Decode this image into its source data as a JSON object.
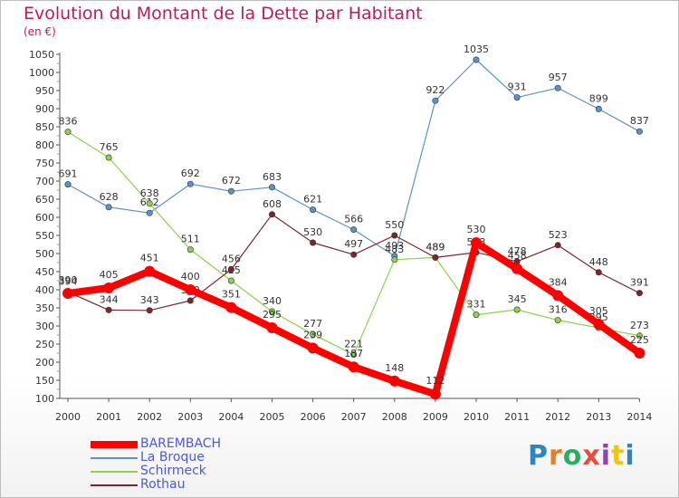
{
  "title": "Evolution du Montant de la Dette par Habitant",
  "subtitle": "(en €)",
  "logo": {
    "text": "Proxiti"
  },
  "chart_data": {
    "type": "line",
    "x": [
      "2000",
      "2001",
      "2002",
      "2003",
      "2004",
      "2005",
      "2006",
      "2007",
      "2008",
      "2009",
      "2010",
      "2011",
      "2012",
      "2013",
      "2014"
    ],
    "ylim": [
      100,
      1050
    ],
    "yticks": [
      100,
      150,
      200,
      250,
      300,
      350,
      400,
      450,
      500,
      550,
      600,
      650,
      700,
      750,
      800,
      850,
      900,
      950,
      1000,
      1050
    ],
    "grid": false,
    "legend": "bottom-left",
    "series": [
      {
        "name": "La Broque",
        "color": "#5b93c8",
        "values": [
          691,
          628,
          612,
          692,
          672,
          683,
          621,
          566,
          493,
          922,
          1035,
          931,
          957,
          899,
          837
        ]
      },
      {
        "name": "Schirmeck",
        "color": "#8cd24a",
        "values": [
          836,
          765,
          638,
          511,
          425,
          340,
          277,
          221,
          483,
          489,
          331,
          345,
          316,
          295,
          273
        ]
      },
      {
        "name": "Rothau",
        "color": "#7a2630",
        "values": [
          394,
          344,
          343,
          370,
          456,
          608,
          530,
          497,
          550,
          489,
          503,
          478,
          523,
          448,
          391
        ]
      },
      {
        "name": "BAREMBACH",
        "color": "#ff0000",
        "values": [
          390,
          405,
          451,
          400,
          351,
          295,
          239,
          187,
          148,
          112,
          530,
          458,
          384,
          305,
          225
        ]
      }
    ],
    "legend_order": [
      "BAREMBACH",
      "La Broque",
      "Schirmeck",
      "Rothau"
    ]
  }
}
